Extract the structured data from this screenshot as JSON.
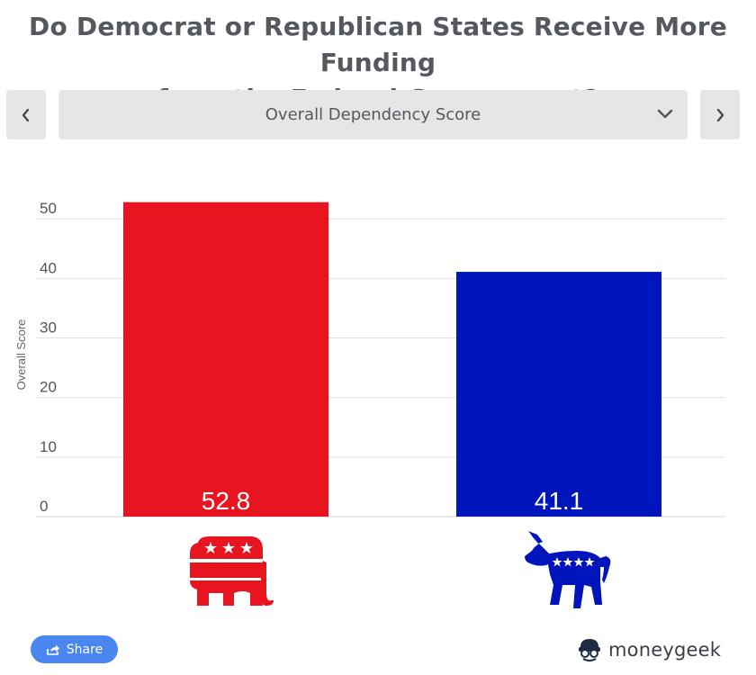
{
  "page": {
    "title_line1": "Do Democrat or Republican States Receive More Funding",
    "title_line2": "from the Federal Government?"
  },
  "selector": {
    "selected": "Overall Dependency Score",
    "prev_icon": "chevron-left-icon",
    "next_icon": "chevron-right-icon",
    "dropdown_icon": "chevron-down-icon"
  },
  "chart_data": {
    "type": "bar",
    "title": "Do Democrat or Republican States Receive More Funding from the Federal Government?",
    "xlabel": "",
    "ylabel": "Overall Score",
    "ylim": [
      0,
      53.5
    ],
    "yticks": [
      0,
      10,
      20,
      30,
      40,
      50
    ],
    "grid": true,
    "legend": "none",
    "categories": [
      "Republican",
      "Democrat"
    ],
    "values": [
      52.8,
      41.1
    ],
    "value_labels": [
      "52.8",
      "41.1"
    ],
    "colors": [
      "#e8141f",
      "#0015bc"
    ]
  },
  "party_logos": {
    "republican_icon": "republican-elephant-icon",
    "democrat_icon": "democrat-donkey-icon",
    "republican_color": "#e8141f",
    "democrat_color": "#0015bc"
  },
  "footer": {
    "share_label": "Share",
    "share_icon": "share-icon",
    "brand_name": "moneygeek",
    "brand_icon": "moneygeek-logo-icon"
  }
}
